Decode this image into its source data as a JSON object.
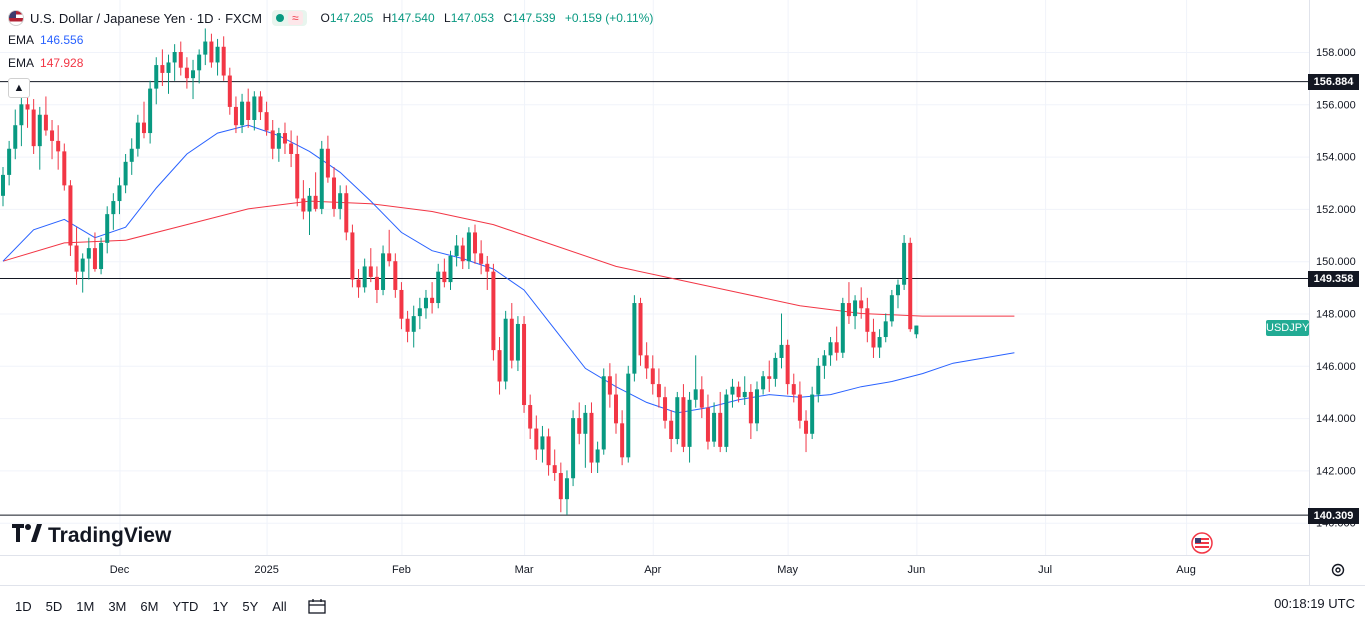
{
  "header": {
    "symbol_title": "U.S. Dollar / Japanese Yen · 1D · FXCM",
    "pill_wave": "≈",
    "ohlc": {
      "o_label": "O",
      "o": "147.205",
      "h_label": "H",
      "h": "147.540",
      "l_label": "L",
      "l": "147.053",
      "c_label": "C",
      "c": "147.539",
      "change": "+0.159 (+0.11%)"
    }
  },
  "indicators": [
    {
      "label": "EMA",
      "value": "146.556",
      "color": "#2962ff"
    },
    {
      "label": "EMA",
      "value": "147.928",
      "color": "#f23645"
    }
  ],
  "horizontal_lines": [
    {
      "value": 156.884,
      "label": "156.884"
    },
    {
      "value": 149.358,
      "label": "149.358"
    },
    {
      "value": 140.309,
      "label": "140.309"
    }
  ],
  "symbol_tag": "USDJPY",
  "logo_text": "TradingView",
  "bottom_bar": {
    "ranges": [
      "1D",
      "5D",
      "1M",
      "3M",
      "6M",
      "YTD",
      "1Y",
      "5Y",
      "All"
    ],
    "clock": "00:18:19 UTC"
  },
  "colors": {
    "up": "#089981",
    "down": "#f23645",
    "ema_fast": "#2962ff",
    "ema_slow": "#f23645"
  },
  "chart_data": {
    "type": "candlestick",
    "title": "U.S. Dollar / Japanese Yen · 1D · FXCM",
    "ylim": [
      139.2,
      160.2
    ],
    "y_ticks": [
      "140.000",
      "142.000",
      "144.000",
      "146.000",
      "148.000",
      "150.000",
      "152.000",
      "154.000",
      "156.000",
      "158.000"
    ],
    "x_ticks": [
      {
        "label": "Dec",
        "index": 19
      },
      {
        "label": "2025",
        "index": 43
      },
      {
        "label": "Feb",
        "index": 65
      },
      {
        "label": "Mar",
        "index": 85
      },
      {
        "label": "Apr",
        "index": 106
      },
      {
        "label": "May",
        "index": 128
      },
      {
        "label": "Jun",
        "index": 149
      },
      {
        "label": "Jul",
        "index": 170
      },
      {
        "label": "Aug",
        "index": 193
      }
    ],
    "candles": [
      [
        152.5,
        153.6,
        152.1,
        153.3
      ],
      [
        153.3,
        154.6,
        152.9,
        154.3
      ],
      [
        154.3,
        155.8,
        153.9,
        155.2
      ],
      [
        155.2,
        156.4,
        154.4,
        156.0
      ],
      [
        156.0,
        156.7,
        155.1,
        155.8
      ],
      [
        155.8,
        156.2,
        154.1,
        154.4
      ],
      [
        154.4,
        155.9,
        153.5,
        155.6
      ],
      [
        155.6,
        156.3,
        154.8,
        155.0
      ],
      [
        155.0,
        155.4,
        153.9,
        154.6
      ],
      [
        154.6,
        155.2,
        153.5,
        154.2
      ],
      [
        154.2,
        154.5,
        152.7,
        152.9
      ],
      [
        152.9,
        153.1,
        150.2,
        150.6
      ],
      [
        150.6,
        151.3,
        149.1,
        149.6
      ],
      [
        149.6,
        150.3,
        148.8,
        150.1
      ],
      [
        150.1,
        150.9,
        149.3,
        150.5
      ],
      [
        150.5,
        151.1,
        149.6,
        149.7
      ],
      [
        149.7,
        150.9,
        149.5,
        150.7
      ],
      [
        150.7,
        152.1,
        150.3,
        151.8
      ],
      [
        151.8,
        152.6,
        151.2,
        152.3
      ],
      [
        152.3,
        153.2,
        151.8,
        152.9
      ],
      [
        152.9,
        154.1,
        152.6,
        153.8
      ],
      [
        153.8,
        154.7,
        153.3,
        154.3
      ],
      [
        154.3,
        155.6,
        154.0,
        155.3
      ],
      [
        155.3,
        156.1,
        154.7,
        154.9
      ],
      [
        154.9,
        156.9,
        154.5,
        156.6
      ],
      [
        156.6,
        157.8,
        156.0,
        157.5
      ],
      [
        157.5,
        158.1,
        156.7,
        157.2
      ],
      [
        157.2,
        157.9,
        156.4,
        157.6
      ],
      [
        157.6,
        158.3,
        156.9,
        158.0
      ],
      [
        158.0,
        158.4,
        157.1,
        157.4
      ],
      [
        157.4,
        157.8,
        156.6,
        157.0
      ],
      [
        157.0,
        157.7,
        156.2,
        157.3
      ],
      [
        157.3,
        158.1,
        156.8,
        157.9
      ],
      [
        157.9,
        158.9,
        157.5,
        158.4
      ],
      [
        158.4,
        158.7,
        157.4,
        157.6
      ],
      [
        157.6,
        158.5,
        157.1,
        158.2
      ],
      [
        158.2,
        158.6,
        156.9,
        157.1
      ],
      [
        157.1,
        157.4,
        155.6,
        155.9
      ],
      [
        155.9,
        156.3,
        154.9,
        155.2
      ],
      [
        155.2,
        156.4,
        154.9,
        156.1
      ],
      [
        156.1,
        156.6,
        155.1,
        155.4
      ],
      [
        155.4,
        156.5,
        155.0,
        156.3
      ],
      [
        156.3,
        156.5,
        155.4,
        155.7
      ],
      [
        155.7,
        156.1,
        154.8,
        155.0
      ],
      [
        155.0,
        155.4,
        153.9,
        154.3
      ],
      [
        154.3,
        155.1,
        153.8,
        154.9
      ],
      [
        154.9,
        155.3,
        154.1,
        154.5
      ],
      [
        154.5,
        155.0,
        153.6,
        154.1
      ],
      [
        154.1,
        154.8,
        152.1,
        152.4
      ],
      [
        152.4,
        153.1,
        151.6,
        151.9
      ],
      [
        151.9,
        152.8,
        151.0,
        152.5
      ],
      [
        152.5,
        153.4,
        151.9,
        152.0
      ],
      [
        152.0,
        154.6,
        151.8,
        154.3
      ],
      [
        154.3,
        154.8,
        153.0,
        153.2
      ],
      [
        153.2,
        153.6,
        151.7,
        152.0
      ],
      [
        152.0,
        152.9,
        151.6,
        152.6
      ],
      [
        152.6,
        152.9,
        150.8,
        151.1
      ],
      [
        151.1,
        151.4,
        149.0,
        149.3
      ],
      [
        149.3,
        149.7,
        148.6,
        149.0
      ],
      [
        149.0,
        150.1,
        148.8,
        149.8
      ],
      [
        149.8,
        150.5,
        149.2,
        149.4
      ],
      [
        149.4,
        149.8,
        148.4,
        148.9
      ],
      [
        148.9,
        150.6,
        148.7,
        150.3
      ],
      [
        150.3,
        151.2,
        149.8,
        150.0
      ],
      [
        150.0,
        150.3,
        148.6,
        148.9
      ],
      [
        148.9,
        149.2,
        147.4,
        147.8
      ],
      [
        147.8,
        148.1,
        146.9,
        147.3
      ],
      [
        147.3,
        148.3,
        146.7,
        147.9
      ],
      [
        147.9,
        148.6,
        147.4,
        148.2
      ],
      [
        148.2,
        148.9,
        147.8,
        148.6
      ],
      [
        148.6,
        149.2,
        148.0,
        148.4
      ],
      [
        148.4,
        149.9,
        148.2,
        149.6
      ],
      [
        149.6,
        150.1,
        149.0,
        149.2
      ],
      [
        149.2,
        150.4,
        148.9,
        150.2
      ],
      [
        150.2,
        151.0,
        149.8,
        150.6
      ],
      [
        150.6,
        150.9,
        149.7,
        150.0
      ],
      [
        150.0,
        151.3,
        149.7,
        151.1
      ],
      [
        151.1,
        151.4,
        149.9,
        150.3
      ],
      [
        150.3,
        150.8,
        149.5,
        149.9
      ],
      [
        149.9,
        150.2,
        148.9,
        149.6
      ],
      [
        149.6,
        149.9,
        146.2,
        146.6
      ],
      [
        146.6,
        147.1,
        144.9,
        145.4
      ],
      [
        145.4,
        148.1,
        145.1,
        147.8
      ],
      [
        147.8,
        148.4,
        145.9,
        146.2
      ],
      [
        146.2,
        147.9,
        145.8,
        147.6
      ],
      [
        147.6,
        147.9,
        144.2,
        144.5
      ],
      [
        144.5,
        144.9,
        143.2,
        143.6
      ],
      [
        143.6,
        144.1,
        142.4,
        142.8
      ],
      [
        142.8,
        143.7,
        142.3,
        143.3
      ],
      [
        143.3,
        143.6,
        141.8,
        142.2
      ],
      [
        142.2,
        142.8,
        141.6,
        141.9
      ],
      [
        141.9,
        142.3,
        140.4,
        140.9
      ],
      [
        140.9,
        142.0,
        140.3,
        141.7
      ],
      [
        141.7,
        144.3,
        141.4,
        144.0
      ],
      [
        144.0,
        144.6,
        143.0,
        143.4
      ],
      [
        143.4,
        144.5,
        142.1,
        144.2
      ],
      [
        144.2,
        144.6,
        141.9,
        142.3
      ],
      [
        142.3,
        143.1,
        141.9,
        142.8
      ],
      [
        142.8,
        145.9,
        142.6,
        145.6
      ],
      [
        145.6,
        146.1,
        144.4,
        144.9
      ],
      [
        144.9,
        145.7,
        143.4,
        143.8
      ],
      [
        143.8,
        144.3,
        142.2,
        142.5
      ],
      [
        142.5,
        146.0,
        142.3,
        145.7
      ],
      [
        145.7,
        148.7,
        145.4,
        148.4
      ],
      [
        148.4,
        148.6,
        146.0,
        146.4
      ],
      [
        146.4,
        146.9,
        145.5,
        145.9
      ],
      [
        145.9,
        146.4,
        144.9,
        145.3
      ],
      [
        145.3,
        145.9,
        144.4,
        144.8
      ],
      [
        144.8,
        145.2,
        143.6,
        143.9
      ],
      [
        143.9,
        144.3,
        142.7,
        143.2
      ],
      [
        143.2,
        145.0,
        143.0,
        144.8
      ],
      [
        144.8,
        145.3,
        142.7,
        142.9
      ],
      [
        142.9,
        145.0,
        142.3,
        144.7
      ],
      [
        144.7,
        146.4,
        144.4,
        145.1
      ],
      [
        145.1,
        145.6,
        144.0,
        144.4
      ],
      [
        144.4,
        144.9,
        142.8,
        143.1
      ],
      [
        143.1,
        144.6,
        142.9,
        144.2
      ],
      [
        144.2,
        145.0,
        142.7,
        142.9
      ],
      [
        142.9,
        145.1,
        142.7,
        144.9
      ],
      [
        144.9,
        145.5,
        144.4,
        145.2
      ],
      [
        145.2,
        145.4,
        144.6,
        144.8
      ],
      [
        144.8,
        145.6,
        144.5,
        145.0
      ],
      [
        145.0,
        145.3,
        143.2,
        143.8
      ],
      [
        143.8,
        145.4,
        143.5,
        145.1
      ],
      [
        145.1,
        145.8,
        144.9,
        145.6
      ],
      [
        145.6,
        146.2,
        145.0,
        145.5
      ],
      [
        145.5,
        146.5,
        145.2,
        146.3
      ],
      [
        146.3,
        148.0,
        145.9,
        146.8
      ],
      [
        146.8,
        147.0,
        144.9,
        145.3
      ],
      [
        145.3,
        145.7,
        144.6,
        144.9
      ],
      [
        144.9,
        145.4,
        143.6,
        143.9
      ],
      [
        143.9,
        144.3,
        142.7,
        143.4
      ],
      [
        143.4,
        145.2,
        143.2,
        144.9
      ],
      [
        144.9,
        146.3,
        144.6,
        146.0
      ],
      [
        146.0,
        146.6,
        145.5,
        146.4
      ],
      [
        146.4,
        147.1,
        146.0,
        146.9
      ],
      [
        146.9,
        147.5,
        146.2,
        146.5
      ],
      [
        146.5,
        148.6,
        146.3,
        148.4
      ],
      [
        148.4,
        149.2,
        147.6,
        147.9
      ],
      [
        147.9,
        148.7,
        147.4,
        148.5
      ],
      [
        148.5,
        149.0,
        147.8,
        148.2
      ],
      [
        148.2,
        148.6,
        146.9,
        147.3
      ],
      [
        147.3,
        147.8,
        146.3,
        146.7
      ],
      [
        146.7,
        147.4,
        146.3,
        147.1
      ],
      [
        147.1,
        148.0,
        146.9,
        147.7
      ],
      [
        147.7,
        148.9,
        147.5,
        148.7
      ],
      [
        148.7,
        149.3,
        148.2,
        149.1
      ],
      [
        149.1,
        151.0,
        148.9,
        150.7
      ],
      [
        150.7,
        150.9,
        147.3,
        147.4
      ],
      [
        147.205,
        147.54,
        147.053,
        147.539
      ]
    ],
    "ema_fast": [
      [
        0,
        150.0
      ],
      [
        5,
        151.2
      ],
      [
        10,
        151.6
      ],
      [
        15,
        150.9
      ],
      [
        20,
        151.3
      ],
      [
        25,
        152.8
      ],
      [
        30,
        154.1
      ],
      [
        35,
        154.9
      ],
      [
        40,
        155.2
      ],
      [
        45,
        154.8
      ],
      [
        50,
        154.2
      ],
      [
        55,
        153.4
      ],
      [
        60,
        152.3
      ],
      [
        65,
        151.1
      ],
      [
        70,
        150.4
      ],
      [
        75,
        150.1
      ],
      [
        80,
        149.7
      ],
      [
        85,
        148.9
      ],
      [
        90,
        147.4
      ],
      [
        95,
        145.9
      ],
      [
        100,
        145.2
      ],
      [
        105,
        144.6
      ],
      [
        110,
        144.2
      ],
      [
        115,
        144.4
      ],
      [
        120,
        144.7
      ],
      [
        125,
        144.9
      ],
      [
        130,
        144.8
      ],
      [
        135,
        144.9
      ],
      [
        140,
        145.2
      ],
      [
        145,
        145.4
      ],
      [
        150,
        145.7
      ],
      [
        155,
        146.1
      ],
      [
        160,
        146.3
      ],
      [
        165,
        146.5
      ]
    ],
    "ema_slow": [
      [
        0,
        150.0
      ],
      [
        10,
        150.7
      ],
      [
        20,
        150.8
      ],
      [
        30,
        151.4
      ],
      [
        40,
        152.0
      ],
      [
        50,
        152.3
      ],
      [
        60,
        152.2
      ],
      [
        70,
        151.9
      ],
      [
        80,
        151.4
      ],
      [
        90,
        150.6
      ],
      [
        100,
        149.8
      ],
      [
        110,
        149.3
      ],
      [
        120,
        148.8
      ],
      [
        130,
        148.3
      ],
      [
        140,
        148.0
      ],
      [
        150,
        147.9
      ],
      [
        160,
        147.9
      ],
      [
        165,
        147.9
      ]
    ]
  }
}
